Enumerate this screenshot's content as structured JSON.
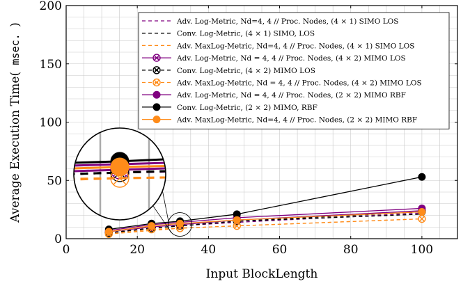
{
  "chart_data": {
    "type": "line",
    "xlabel": "Input BlockLength",
    "ylabel_main": "Average Execution Time(",
    "ylabel_unit": "msec.",
    "ylabel_close": ")",
    "xlim": [
      0,
      110
    ],
    "ylim": [
      0,
      200
    ],
    "xticks": [
      0,
      20,
      40,
      60,
      80,
      100
    ],
    "yticks": [
      0,
      50,
      100,
      150,
      200
    ],
    "grid": "minor",
    "legend_position": "top-right",
    "x": [
      12,
      24,
      32,
      48,
      100
    ],
    "series": [
      {
        "name": "Adv. Log-Metric, N_d=4, 4 // Proc. Nodes, (4 × 1) SIMO LOS",
        "legend_text": "Adv. Log-Metric, Nd=4, 4 // Proc. Nodes, (4 × 1) SIMO LOS",
        "color": "#800080",
        "dash": true,
        "marker": "none",
        "values": [
          5,
          9,
          11,
          14,
          22
        ]
      },
      {
        "name": "Conv. Log-Metric, (4 × 1) SIMO, LOS",
        "legend_text": "Conv. Log-Metric, (4 × 1) SIMO, LOS",
        "color": "#000000",
        "dash": true,
        "marker": "none",
        "values": [
          5,
          9,
          11,
          15,
          21
        ]
      },
      {
        "name": "Adv. MaxLog-Metric, N_d=4, 4 // Proc. Nodes, (4 × 1) SIMO LOS",
        "legend_text": "Adv. MaxLog-Metric, Nd=4, 4 // Proc. Nodes, (4 × 1) SIMO LOS",
        "color": "#ff8c1a",
        "dash": true,
        "marker": "none",
        "values": [
          4,
          7,
          9,
          11,
          17
        ]
      },
      {
        "name": "Adv. Log-Metric, N_d = 4, 4 // Proc. Nodes, (4 × 2) MIMO LOS",
        "legend_text": "Adv. Log-Metric, Nd = 4, 4 // Proc. Nodes, (4 × 2) MIMO LOS",
        "color": "#800080",
        "dash": false,
        "marker": "otimes",
        "values": [
          6,
          10,
          12,
          16,
          24
        ]
      },
      {
        "name": "Conv. Log-Metric, (4 × 2) MIMO LOS",
        "legend_text": "Conv. Log-Metric, (4 × 2) MIMO LOS",
        "color": "#000000",
        "dash": true,
        "marker": "otimes",
        "values": [
          5,
          9,
          11,
          15,
          23
        ]
      },
      {
        "name": "Adv. MaxLog-Metric, N_d = 4, 4 // Proc. Nodes, (4 × 2) MIMO LOS",
        "legend_text": "Adv. MaxLog-Metric, Nd = 4, 4 // Proc. Nodes, (4 × 2) MIMO LOS",
        "color": "#ff8c1a",
        "dash": true,
        "marker": "otimes",
        "values": [
          4,
          8,
          9,
          11,
          17
        ]
      },
      {
        "name": "Adv. Log-Metric, N_d = 4, 4 // Proc. Nodes, (2 × 2) MIMO RBF",
        "legend_text": "Adv. Log-Metric, Nd = 4, 4 // Proc. Nodes, (2 × 2) MIMO RBF",
        "color": "#800080",
        "dash": false,
        "marker": "dot",
        "values": [
          7,
          12,
          14,
          18,
          26
        ]
      },
      {
        "name": "Conv. Log-Metric, (2 × 2) MIMO, RBF",
        "legend_text": "Conv. Log-Metric, (2 × 2) MIMO, RBF",
        "color": "#000000",
        "dash": false,
        "marker": "dot",
        "values": [
          8,
          13,
          15,
          21,
          53
        ]
      },
      {
        "name": "Adv. MaxLog-Metric, N_d=4, 4 // Proc. Nodes, (2 × 2) MIMO RBF",
        "legend_text": "Adv. MaxLog-Metric, Nd=4, 4 // Proc. Nodes, (2 × 2) MIMO RBF",
        "color": "#ff8c1a",
        "dash": false,
        "marker": "dot",
        "values": [
          6,
          11,
          13,
          16,
          23
        ]
      }
    ],
    "inset": {
      "source_x": 32,
      "source_y": 11,
      "description": "magnified view around x = 32"
    }
  }
}
